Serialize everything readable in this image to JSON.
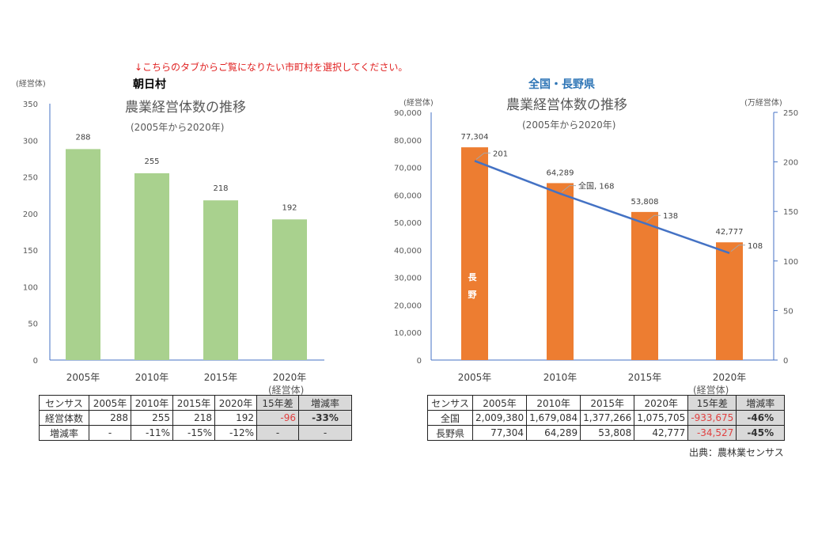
{
  "notice": "↓こちらのタブからご覧になりたい市町村を選択してください。",
  "left": {
    "region": "朝日村",
    "unit": "(経営体)",
    "table": {
      "unit": "(経営体)",
      "header": [
        "センサス",
        "2005年",
        "2010年",
        "2015年",
        "2020年",
        "15年差",
        "増減率"
      ],
      "rows": [
        [
          "経営体数",
          "288",
          "255",
          "218",
          "192",
          "-96",
          "-33%"
        ],
        [
          "増減率",
          "-",
          "-11%",
          "-15%",
          "-12%",
          "-",
          "-"
        ]
      ]
    }
  },
  "right": {
    "region": "全国・長野県",
    "unit_left": "(経営体)",
    "unit_right": "(万経営体)",
    "table": {
      "unit": "(経営体)",
      "header": [
        "センサス",
        "2005年",
        "2010年",
        "2015年",
        "2020年",
        "15年差",
        "増減率"
      ],
      "rows": [
        [
          "全国",
          "2,009,380",
          "1,679,084",
          "1,377,266",
          "1,075,705",
          "-933,675",
          "-46%"
        ],
        [
          "長野県",
          "77,304",
          "64,289",
          "53,808",
          "42,777",
          "-34,527",
          "-45%"
        ]
      ]
    },
    "source": "出典：農林業センサス"
  },
  "chart_data": [
    {
      "type": "bar",
      "title": "農業経営体数の推移",
      "subtitle": "(2005年から2020年)",
      "categories": [
        "2005年",
        "2010年",
        "2015年",
        "2020年"
      ],
      "values": [
        288,
        255,
        218,
        192
      ],
      "ylim": [
        0,
        350
      ],
      "yticks": [
        0,
        50,
        100,
        150,
        200,
        250,
        300,
        350
      ],
      "color": "#a9d18e",
      "grid": false
    },
    {
      "type": "bar+line",
      "title": "農業経営体数の推移",
      "subtitle": "(2005年から2020年)",
      "categories": [
        "2005年",
        "2010年",
        "2015年",
        "2020年"
      ],
      "series": [
        {
          "name": "長野",
          "type": "bar",
          "values": [
            77304,
            64289,
            53808,
            42777
          ],
          "value_labels": [
            "77,304",
            "64,289",
            "53,808",
            "42,777"
          ],
          "axis": "left",
          "color": "#ed7d31"
        },
        {
          "name": "全国",
          "type": "line",
          "values": [
            201,
            168,
            138,
            108
          ],
          "point_labels": [
            "201",
            "全国, 168",
            "138",
            "108"
          ],
          "axis": "right",
          "color": "#4472c4"
        }
      ],
      "ylim": [
        0,
        90000
      ],
      "yticks": [
        "0",
        "10,000",
        "20,000",
        "30,000",
        "40,000",
        "50,000",
        "60,000",
        "70,000",
        "80,000",
        "90,000"
      ],
      "y2lim": [
        0,
        250
      ],
      "y2ticks": [
        0,
        50,
        100,
        150,
        200,
        250
      ],
      "grid": false
    }
  ]
}
